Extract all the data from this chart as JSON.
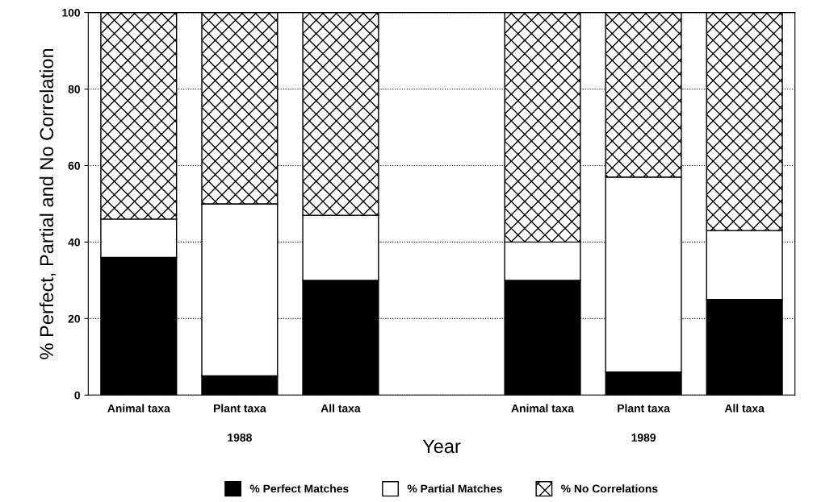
{
  "chart_data": {
    "type": "bar",
    "stacked": true,
    "xlabel": "Year",
    "ylabel": "% Perfect, Partial and No Correlation",
    "categories": [
      "Animal taxa",
      "Plant taxa",
      "All taxa",
      null,
      "Animal taxa",
      "Plant taxa",
      "All taxa"
    ],
    "series": [
      {
        "name": "% Perfect Matches",
        "color": "#000000",
        "values": [
          36,
          5,
          30,
          null,
          30,
          6,
          25
        ]
      },
      {
        "name": "% Partial Matches",
        "color": "#ffffff",
        "values": [
          10,
          45,
          17,
          null,
          10,
          51,
          18
        ]
      },
      {
        "name": "% No Correlations",
        "color": "#000000",
        "values": [
          54,
          50,
          53,
          null,
          60,
          43,
          57
        ]
      }
    ],
    "annotations": [
      "1988",
      "1989"
    ],
    "ylim": [
      0,
      100
    ],
    "yticks": [
      0,
      20,
      40,
      60,
      80,
      100
    ],
    "grid": "y",
    "legend": "bottom"
  }
}
